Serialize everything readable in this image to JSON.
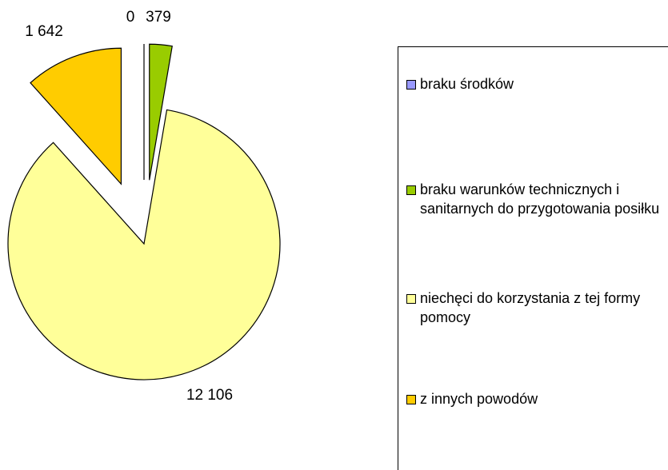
{
  "chart_data": {
    "type": "pie",
    "categories": [
      "braku środków",
      "braku warunków technicznych i sanitarnych do przygotowania posiłku",
      "niechęci do korzystania z tej formy pomocy",
      "z innych powodów"
    ],
    "values": [
      0,
      379,
      12106,
      1642
    ],
    "value_labels": [
      "0",
      "379",
      "12 106",
      "1 642"
    ],
    "colors": [
      "#9999ff",
      "#99cc00",
      "#ffff99",
      "#ffcc00"
    ],
    "legend": "right"
  }
}
